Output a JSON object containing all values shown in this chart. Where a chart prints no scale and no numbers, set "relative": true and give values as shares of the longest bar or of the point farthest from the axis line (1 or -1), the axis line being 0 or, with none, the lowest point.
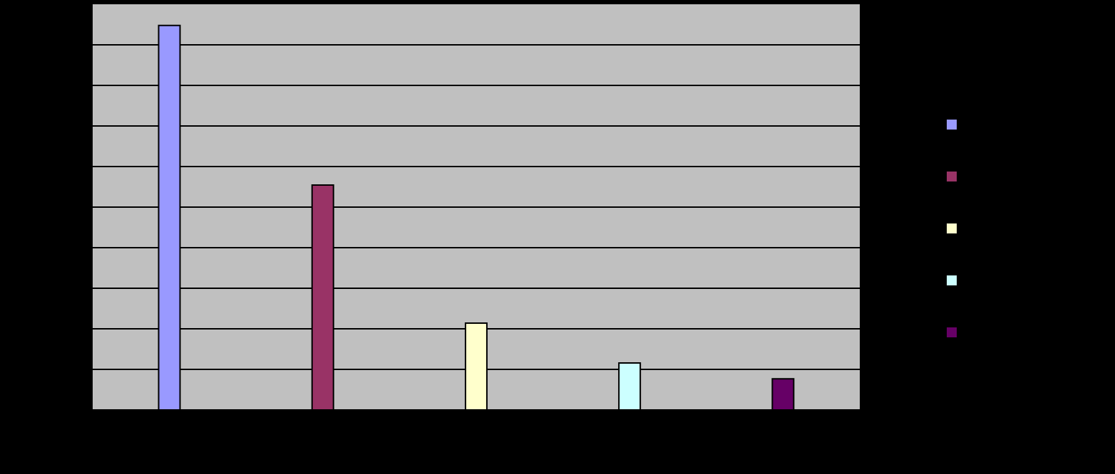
{
  "chart_data": {
    "type": "bar",
    "relative": true,
    "categories": [
      null,
      null,
      null,
      null,
      null
    ],
    "values": [
      1,
      0.585,
      0.226,
      0.122,
      0.081
    ],
    "colors": [
      "#9999ff",
      "#993366",
      "#ffffcc",
      "#ccffff",
      "#660066"
    ],
    "grid": "y"
  }
}
